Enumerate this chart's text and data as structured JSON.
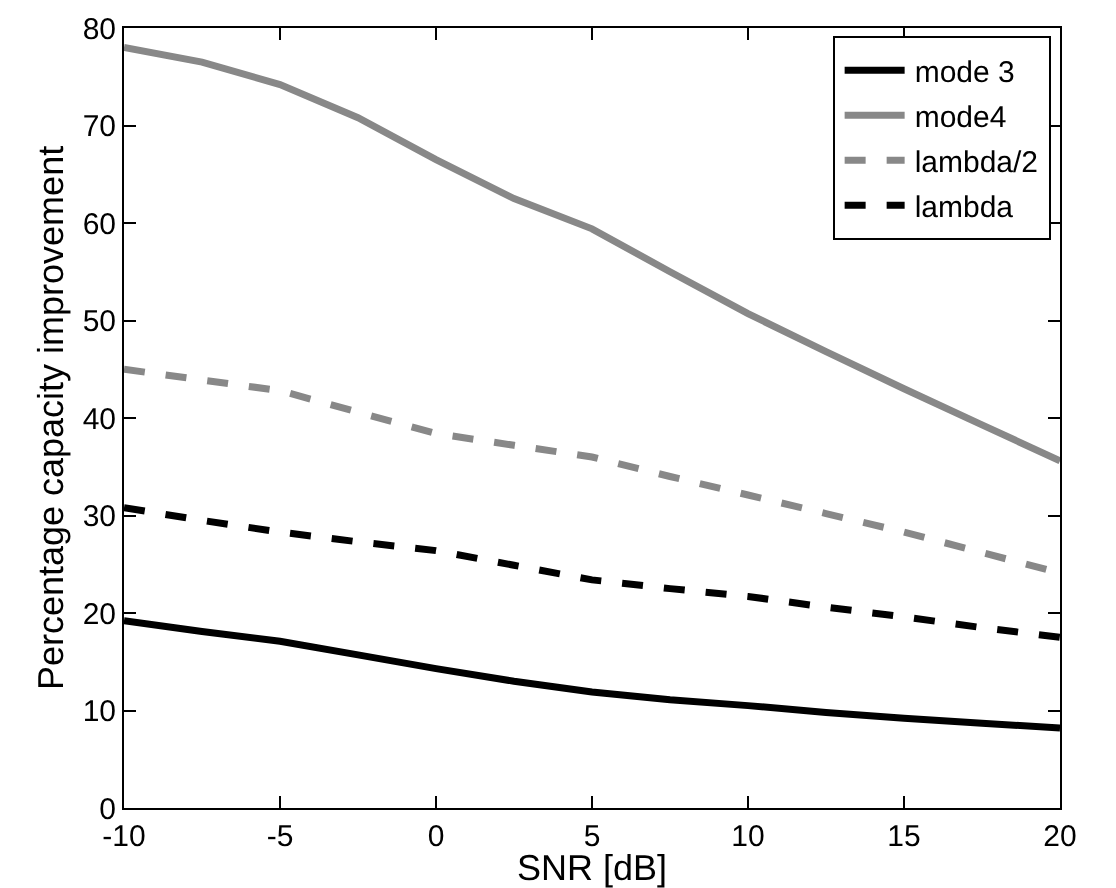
{
  "chart_data": {
    "type": "line",
    "xlabel": "SNR [dB]",
    "ylabel": "Percentage capacity improvement",
    "x": [
      -10,
      -7.5,
      -5,
      -2.5,
      0,
      2.5,
      5,
      7.5,
      10,
      12.5,
      15,
      17.5,
      20
    ],
    "xlim": [
      -10,
      20
    ],
    "xticks": [
      -10,
      -5,
      0,
      5,
      10,
      15,
      20
    ],
    "ylim": [
      0,
      80
    ],
    "yticks": [
      0,
      10,
      20,
      30,
      40,
      50,
      60,
      70,
      80
    ],
    "grid": false,
    "legend": "top right",
    "marker": "none",
    "series": [
      {
        "name": "mode 3",
        "color": "#000000",
        "line_style": "solid",
        "values": [
          19.2,
          18.1,
          17.1,
          15.7,
          14.3,
          13,
          11.9,
          11.1,
          10.5,
          9.8,
          9.2,
          8.7,
          8.2
        ]
      },
      {
        "name": "mode4",
        "color": "#888888",
        "line_style": "solid",
        "values": [
          78,
          76.5,
          74.2,
          70.8,
          66.5,
          62.5,
          59.4,
          55,
          50.7,
          46.8,
          43,
          39.3,
          35.6
        ]
      },
      {
        "name": "lambda/2",
        "color": "#888888",
        "line_style": "dashed",
        "values": [
          45,
          43.9,
          42.8,
          40.6,
          38.4,
          37.2,
          36,
          34,
          32.1,
          30.2,
          28.3,
          26.2,
          24.1
        ]
      },
      {
        "name": "lambda",
        "color": "#000000",
        "line_style": "dashed",
        "values": [
          30.8,
          29.5,
          28.3,
          27.3,
          26.4,
          24.9,
          23.4,
          22.5,
          21.7,
          20.6,
          19.6,
          18.5,
          17.5
        ]
      }
    ]
  }
}
